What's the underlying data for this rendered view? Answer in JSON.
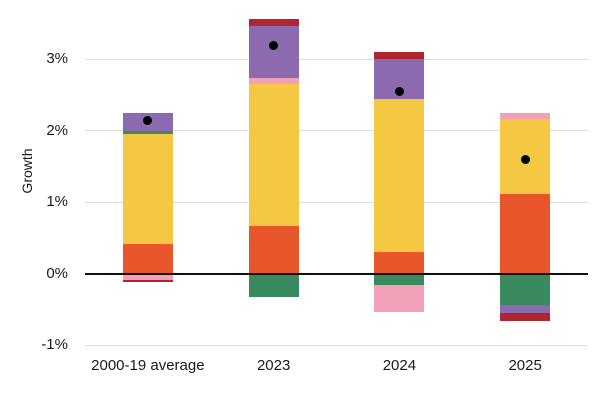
{
  "chart_data": {
    "type": "bar",
    "stacked": true,
    "title": "",
    "xlabel": "",
    "ylabel": "Growth",
    "categories": [
      "2000-19 average",
      "2023",
      "2024",
      "2025"
    ],
    "y_ticks": [
      {
        "value": 3,
        "label": "3%"
      },
      {
        "value": 2,
        "label": "2%"
      },
      {
        "value": 1,
        "label": "1%"
      },
      {
        "value": 0,
        "label": "0%"
      },
      {
        "value": -1,
        "label": "-1%"
      }
    ],
    "ylim": [
      -1.35,
      3.65
    ],
    "grid": true,
    "legend_position": "none",
    "unit": "%",
    "series": [
      {
        "name": "orange-segment",
        "color": "#E8562B",
        "values": [
          0.42,
          0.67,
          0.31,
          1.12
        ]
      },
      {
        "name": "yellow-segment",
        "color": "#F5C844",
        "values": [
          1.54,
          1.99,
          2.13,
          1.05
        ]
      },
      {
        "name": "green-segment",
        "color": "#3A8A5F",
        "values": [
          0.04,
          -0.33,
          -0.15,
          -0.43
        ]
      },
      {
        "name": "pink-segment",
        "color": "#F2A0B8",
        "values": [
          -0.08,
          0.08,
          -0.38,
          0.08
        ]
      },
      {
        "name": "purple-segment",
        "color": "#8B6AB0",
        "values": [
          0.25,
          0.72,
          0.56,
          -0.12
        ]
      },
      {
        "name": "crimson-segment",
        "color": "#B02630",
        "values": [
          -0.04,
          0.1,
          0.1,
          -0.11
        ]
      }
    ],
    "net_markers": {
      "name": "net-growth-dot",
      "color": "#000000",
      "values": [
        2.15,
        3.2,
        2.55,
        1.6
      ]
    },
    "colors": {
      "grid": "#dcdcdc",
      "zero_line": "#111111",
      "text": "#1a1a1a",
      "background": "#ffffff"
    }
  }
}
